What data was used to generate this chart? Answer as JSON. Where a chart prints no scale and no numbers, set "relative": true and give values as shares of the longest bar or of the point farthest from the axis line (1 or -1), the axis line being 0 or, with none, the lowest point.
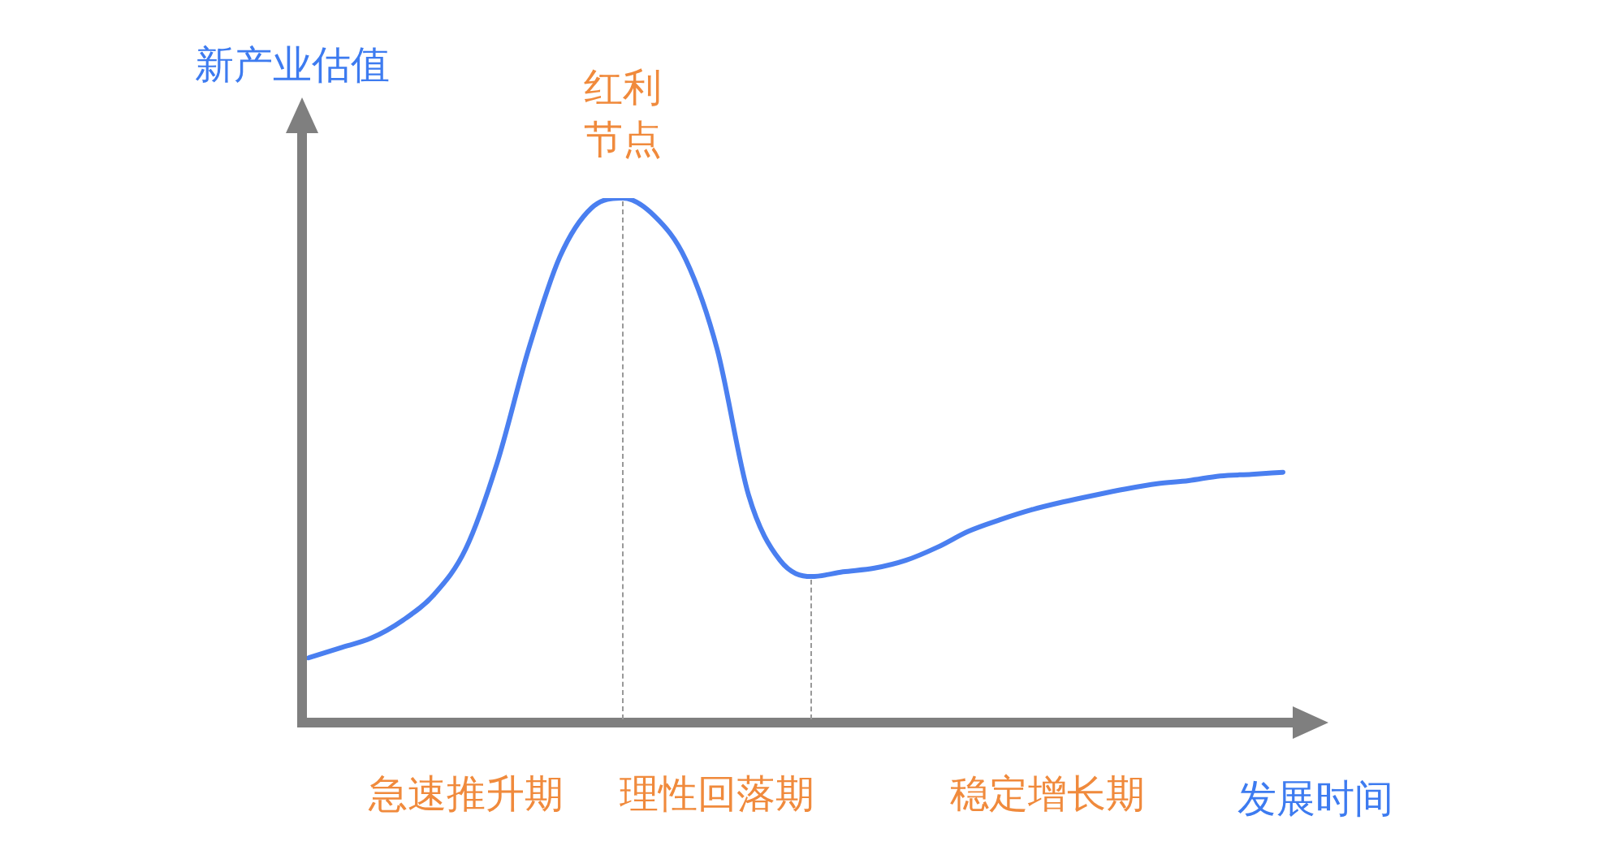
{
  "chart_data": {
    "type": "line",
    "xlabel": "发展时间",
    "ylabel": "新产业估值",
    "relative": true,
    "marker": "none",
    "line_style": "solid",
    "categories": [
      null,
      null,
      null,
      null,
      null,
      null,
      null,
      null,
      null,
      null,
      null,
      null,
      null,
      null,
      null,
      null,
      null,
      null,
      null,
      null,
      null,
      null,
      null,
      null,
      null,
      null,
      null,
      null,
      null,
      null,
      null,
      null
    ],
    "series": [
      {
        "color": "#4a7ff0",
        "values": [
          0.118,
          0.137,
          0.156,
          0.19,
          0.24,
          0.327,
          0.492,
          0.71,
          0.888,
          0.981,
          1,
          0.966,
          0.882,
          0.71,
          0.43,
          0.305,
          0.274,
          0.283,
          0.29,
          0.305,
          0.33,
          0.361,
          0.383,
          0.402,
          0.417,
          0.43,
          0.442,
          0.452,
          0.458,
          0.467,
          0.47,
          0.474
        ]
      }
    ],
    "annotations": [
      "红利节点",
      "急速推升期",
      "理性回落期",
      "稳定增长期"
    ]
  }
}
